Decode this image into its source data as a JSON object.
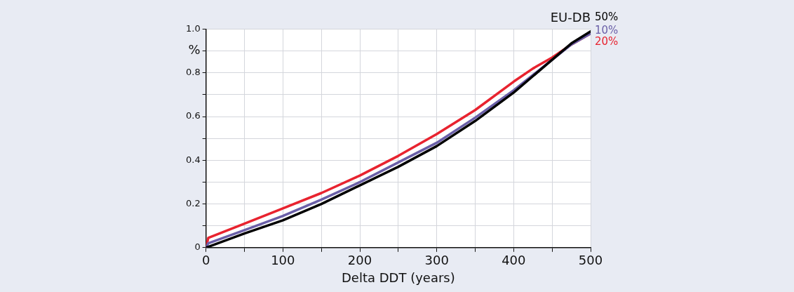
{
  "chart_data": {
    "type": "line",
    "title": "EU-DB",
    "xlabel": "Delta DDT (years)",
    "ylabel": "%",
    "xlim": [
      0,
      500
    ],
    "xticks": [
      0,
      {
        "value": 50,
        "label": null
      },
      100,
      {
        "value": 150,
        "label": null
      },
      200,
      {
        "value": 250,
        "label": null
      },
      300,
      {
        "value": 350,
        "label": null
      },
      400,
      {
        "value": 450,
        "label": null
      },
      500
    ],
    "ylim": [
      0,
      1.0
    ],
    "yticks": [
      0,
      {
        "value": 0.1,
        "label": null
      },
      0.2,
      {
        "value": 0.3,
        "label": null
      },
      0.4,
      {
        "value": 0.5,
        "label": null
      },
      0.6,
      {
        "value": 0.7,
        "label": null
      },
      0.8,
      {
        "value": 0.9,
        "label": null
      },
      {
        "value": 1.0,
        "label": "1.0"
      }
    ],
    "grid": true,
    "legend": false,
    "marker": "none",
    "line_style": "solid",
    "series": [
      {
        "name": "50%",
        "color": "#000000",
        "x": [
          0,
          50,
          100,
          150,
          200,
          250,
          300,
          350,
          400,
          425,
          450,
          475,
          500
        ],
        "values": [
          0,
          0.065,
          0.125,
          0.2,
          0.285,
          0.37,
          0.465,
          0.58,
          0.71,
          0.785,
          0.86,
          0.935,
          0.99
        ]
      },
      {
        "name": "10%",
        "color": "#6a5fa8",
        "x": [
          0,
          3,
          50,
          100,
          150,
          200,
          250,
          300,
          350,
          400,
          425,
          450,
          475,
          500
        ],
        "values": [
          0,
          0.02,
          0.08,
          0.145,
          0.22,
          0.3,
          0.39,
          0.48,
          0.595,
          0.72,
          0.79,
          0.86,
          0.93,
          0.98
        ]
      },
      {
        "name": "20%",
        "color": "#e8232f",
        "x": [
          0,
          3,
          50,
          100,
          150,
          200,
          250,
          300,
          350,
          400,
          425,
          450,
          475,
          500
        ],
        "values": [
          0,
          0.045,
          0.11,
          0.18,
          0.25,
          0.33,
          0.42,
          0.52,
          0.63,
          0.76,
          0.82,
          0.87,
          0.93,
          0.98
        ]
      }
    ]
  }
}
